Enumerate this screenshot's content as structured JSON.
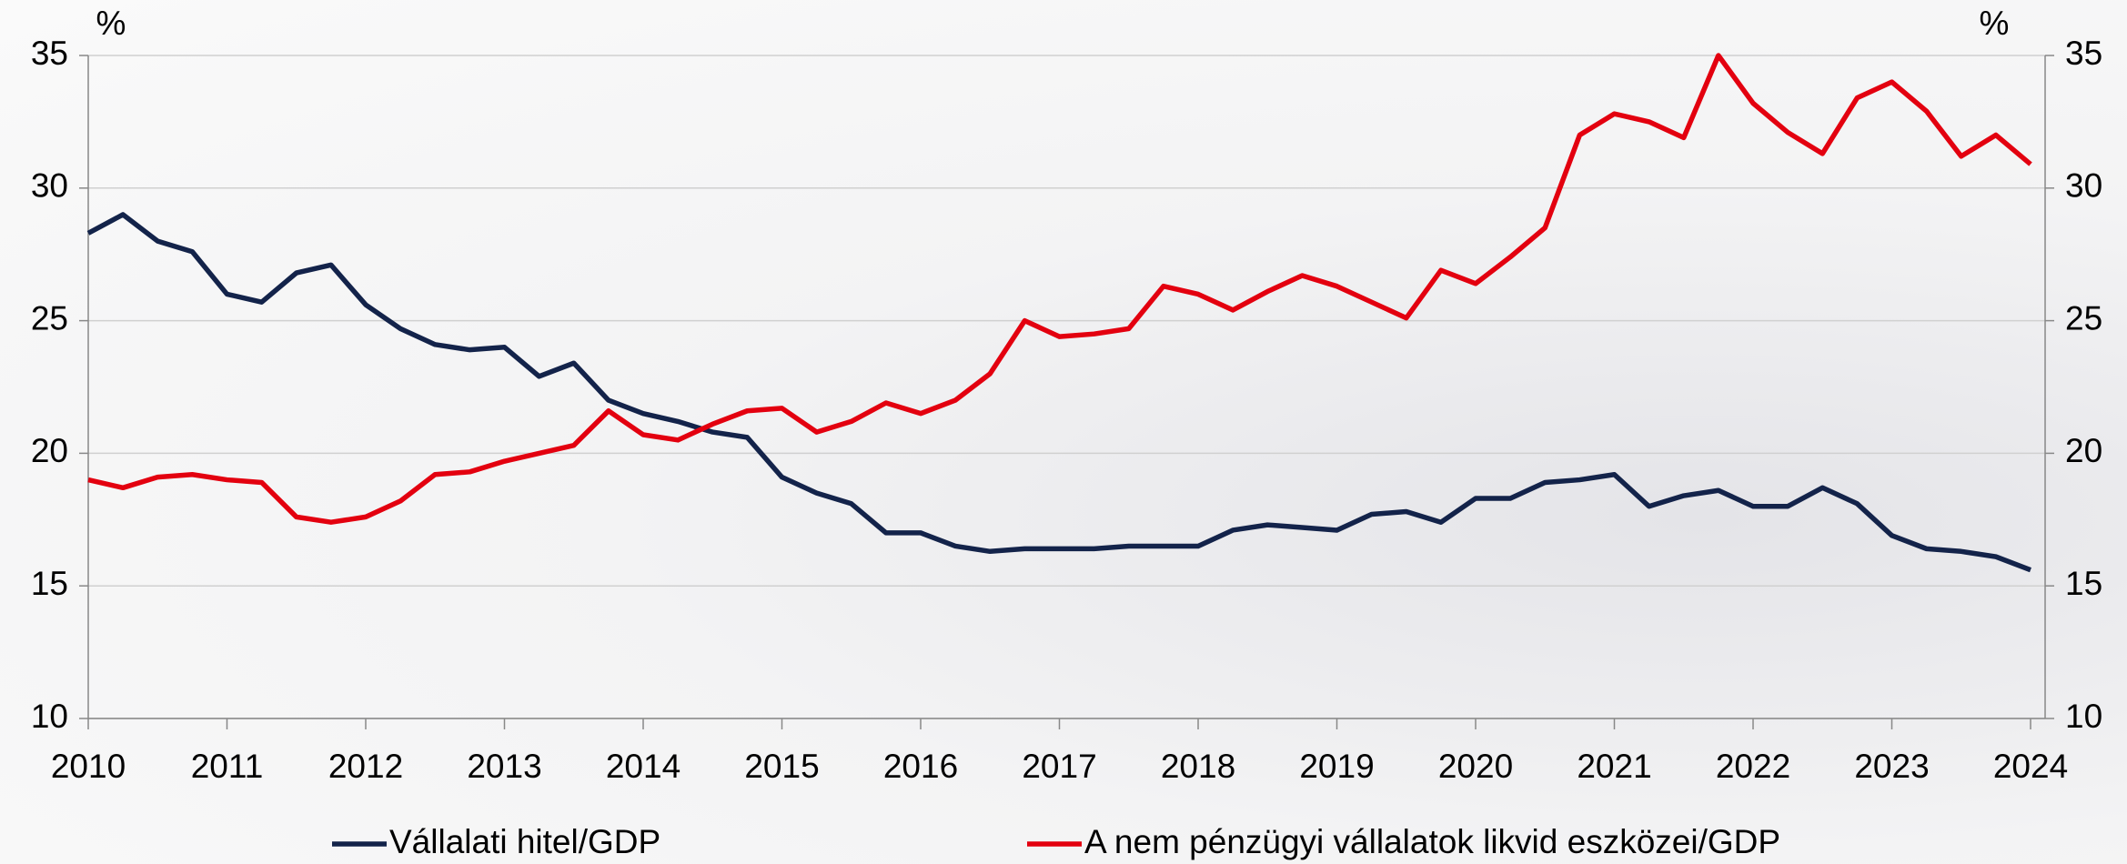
{
  "chart_data": {
    "type": "line",
    "ylabel": "%",
    "y2label": "%",
    "x": [
      2010,
      2010.25,
      2010.5,
      2010.75,
      2011,
      2011.25,
      2011.5,
      2011.75,
      2012,
      2012.25,
      2012.5,
      2012.75,
      2013,
      2013.25,
      2013.5,
      2013.75,
      2014,
      2014.25,
      2014.5,
      2014.75,
      2015,
      2015.25,
      2015.5,
      2015.75,
      2016,
      2016.25,
      2016.5,
      2016.75,
      2017,
      2017.25,
      2017.5,
      2017.75,
      2018,
      2018.25,
      2018.5,
      2018.75,
      2019,
      2019.25,
      2019.5,
      2019.75,
      2020,
      2020.25,
      2020.5,
      2020.75,
      2021,
      2021.25,
      2021.5,
      2021.75,
      2022,
      2022.25,
      2022.5,
      2022.75,
      2023,
      2023.25,
      2023.5,
      2023.75,
      2024
    ],
    "series": [
      {
        "name": "Vállalati hitel/GDP",
        "color": "#13234a",
        "values": [
          28.3,
          29.0,
          28.0,
          27.6,
          26.0,
          25.7,
          26.8,
          27.1,
          25.6,
          24.7,
          24.1,
          23.9,
          24.0,
          22.9,
          23.4,
          22.0,
          21.5,
          21.2,
          20.8,
          20.6,
          19.1,
          18.5,
          18.1,
          17.0,
          17.0,
          16.5,
          16.3,
          16.4,
          16.4,
          16.4,
          16.5,
          16.5,
          16.5,
          17.1,
          17.3,
          17.2,
          17.1,
          17.7,
          17.8,
          17.4,
          18.3,
          18.3,
          18.9,
          19.0,
          19.2,
          18.0,
          18.4,
          18.6,
          18.0,
          18.0,
          18.7,
          18.1,
          16.9,
          16.4,
          16.3,
          16.1,
          15.6
        ]
      },
      {
        "name": "A nem pénzügyi vállalatok likvid eszközei/GDP",
        "color": "#e3000f",
        "axis": "y2",
        "values": [
          19.0,
          18.7,
          19.1,
          19.2,
          19.0,
          18.9,
          17.6,
          17.4,
          17.6,
          18.2,
          19.2,
          19.3,
          19.7,
          20.0,
          20.3,
          21.6,
          20.7,
          20.5,
          21.1,
          21.6,
          21.7,
          20.8,
          21.2,
          21.9,
          21.5,
          22.0,
          23.0,
          25.0,
          24.4,
          24.5,
          24.7,
          26.3,
          26.0,
          25.4,
          26.1,
          26.7,
          26.3,
          25.7,
          25.1,
          26.9,
          26.4,
          27.4,
          28.5,
          32.0,
          32.8,
          32.5,
          31.9,
          35.0,
          33.2,
          32.1,
          31.3,
          33.4,
          34.0,
          32.9,
          31.2,
          32.0,
          30.9
        ]
      }
    ],
    "xlim": [
      2010,
      2024
    ],
    "xticks": [
      2010,
      2011,
      2012,
      2013,
      2014,
      2015,
      2016,
      2017,
      2018,
      2019,
      2020,
      2021,
      2022,
      2023,
      2024
    ],
    "ylim": [
      10,
      35
    ],
    "yticks": [
      10,
      15,
      20,
      25,
      30,
      35
    ],
    "y2lim": [
      10,
      35
    ],
    "y2ticks": [
      10,
      15,
      20,
      25,
      30,
      35
    ],
    "grid": true
  }
}
